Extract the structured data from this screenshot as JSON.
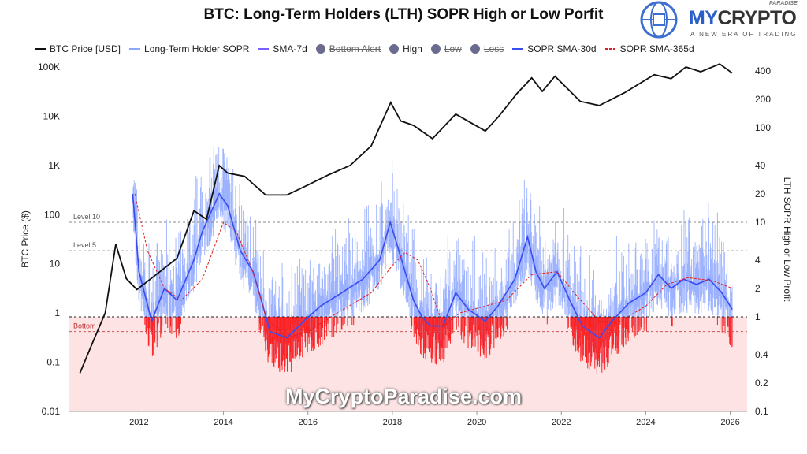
{
  "chart_data": {
    "type": "line",
    "title": "BTC: Long-Term Holders (LTH) SOPR High or Low Porfit",
    "ylabel_left": "BTC Price ($)",
    "ylabel_right": "LTH SOPR High or Low Profit",
    "y_left_scale": "log",
    "y_left_range": [
      0.01,
      100000
    ],
    "y_left_ticks": [
      "100K",
      "10K",
      "1K",
      "100",
      "10",
      "1",
      "0.1",
      "0.01"
    ],
    "y_right_scale": "log",
    "y_right_range": [
      0.1,
      400
    ],
    "y_right_ticks": [
      "400",
      "200",
      "100",
      "40",
      "20",
      "10",
      "4",
      "2",
      "1",
      "0.4",
      "0.2",
      "0.1"
    ],
    "x_range": [
      2010.35,
      2026.4
    ],
    "x_ticks": [
      "2012",
      "2014",
      "2016",
      "2018",
      "2020",
      "2022",
      "2024",
      "2026"
    ],
    "legend": [
      "BTC Price [USD]",
      "Long-Term Holder SOPR",
      "SMA-7d",
      "Bottom Alert",
      "High",
      "Low",
      "Loss",
      "SOPR SMA-30d",
      "SOPR SMA-365d"
    ],
    "legend_placement": "top",
    "reference_lines": [
      {
        "label": "Level 10",
        "value": 10
      },
      {
        "label": "Level 5",
        "value": 5
      },
      {
        "label": "",
        "value": 1
      },
      {
        "label": "Bottom",
        "value": 0.7
      }
    ],
    "colors": {
      "price": "#111111",
      "sopr": "#8fa8ff",
      "sma7": "#7b5cff",
      "sma30": "#3a4cf0",
      "sma365": "#e02020",
      "loss": "#ff2020",
      "loss_zone": "#fde3e3",
      "dot": "#6b6a8f"
    },
    "series": [
      {
        "name": "BTC Price [USD]",
        "axis": "left",
        "points": [
          [
            2010.6,
            0.06
          ],
          [
            2010.9,
            0.25
          ],
          [
            2011.2,
            1
          ],
          [
            2011.45,
            25
          ],
          [
            2011.7,
            5
          ],
          [
            2011.95,
            3
          ],
          [
            2012.5,
            7
          ],
          [
            2012.9,
            13
          ],
          [
            2013.3,
            120
          ],
          [
            2013.6,
            80
          ],
          [
            2013.9,
            1000
          ],
          [
            2014.1,
            700
          ],
          [
            2014.5,
            600
          ],
          [
            2015.0,
            250
          ],
          [
            2015.5,
            250
          ],
          [
            2016.0,
            400
          ],
          [
            2016.5,
            650
          ],
          [
            2017.0,
            1000
          ],
          [
            2017.5,
            2500
          ],
          [
            2017.96,
            19000
          ],
          [
            2018.2,
            8000
          ],
          [
            2018.5,
            6500
          ],
          [
            2018.95,
            3500
          ],
          [
            2019.5,
            11000
          ],
          [
            2020.2,
            5000
          ],
          [
            2020.5,
            9500
          ],
          [
            2020.95,
            29000
          ],
          [
            2021.3,
            60000
          ],
          [
            2021.55,
            32000
          ],
          [
            2021.85,
            65000
          ],
          [
            2022.45,
            20000
          ],
          [
            2022.9,
            16500
          ],
          [
            2023.5,
            30000
          ],
          [
            2024.2,
            70000
          ],
          [
            2024.6,
            58000
          ],
          [
            2024.95,
            100000
          ],
          [
            2025.3,
            80000
          ],
          [
            2025.75,
            115000
          ],
          [
            2026.05,
            75000
          ]
        ]
      },
      {
        "name": "SOPR SMA-30d",
        "axis": "right",
        "points": [
          [
            2011.85,
            20
          ],
          [
            2012.0,
            3
          ],
          [
            2012.3,
            0.9
          ],
          [
            2012.6,
            2
          ],
          [
            2012.9,
            1.5
          ],
          [
            2013.3,
            4
          ],
          [
            2013.5,
            8
          ],
          [
            2013.9,
            20
          ],
          [
            2014.1,
            15
          ],
          [
            2014.4,
            5
          ],
          [
            2014.7,
            3
          ],
          [
            2014.9,
            1.5
          ],
          [
            2015.1,
            0.7
          ],
          [
            2015.5,
            0.6
          ],
          [
            2015.9,
            0.9
          ],
          [
            2016.3,
            1.3
          ],
          [
            2016.8,
            1.8
          ],
          [
            2017.3,
            2.5
          ],
          [
            2017.7,
            4
          ],
          [
            2017.95,
            10
          ],
          [
            2018.1,
            6
          ],
          [
            2018.3,
            3
          ],
          [
            2018.5,
            1.5
          ],
          [
            2018.7,
            1
          ],
          [
            2018.9,
            0.8
          ],
          [
            2019.2,
            0.8
          ],
          [
            2019.5,
            1.8
          ],
          [
            2019.8,
            1.2
          ],
          [
            2020.2,
            0.9
          ],
          [
            2020.5,
            1.3
          ],
          [
            2020.9,
            2.5
          ],
          [
            2021.2,
            7
          ],
          [
            2021.4,
            3
          ],
          [
            2021.6,
            2
          ],
          [
            2021.9,
            3
          ],
          [
            2022.2,
            1.5
          ],
          [
            2022.5,
            0.8
          ],
          [
            2022.9,
            0.6
          ],
          [
            2023.2,
            0.9
          ],
          [
            2023.6,
            1.4
          ],
          [
            2024.0,
            1.8
          ],
          [
            2024.3,
            2.8
          ],
          [
            2024.6,
            2
          ],
          [
            2024.9,
            2.5
          ],
          [
            2025.2,
            2.2
          ],
          [
            2025.5,
            2.5
          ],
          [
            2025.8,
            1.8
          ],
          [
            2026.05,
            1.2
          ]
        ]
      },
      {
        "name": "SOPR SMA-365d",
        "axis": "right",
        "points": [
          [
            2011.9,
            20
          ],
          [
            2012.2,
            5
          ],
          [
            2012.6,
            2
          ],
          [
            2013.0,
            1.5
          ],
          [
            2013.5,
            2.5
          ],
          [
            2014.0,
            10
          ],
          [
            2014.3,
            8
          ],
          [
            2014.7,
            3
          ],
          [
            2015.0,
            1
          ],
          [
            2015.5,
            0.6
          ],
          [
            2016.0,
            0.7
          ],
          [
            2016.7,
            1.1
          ],
          [
            2017.5,
            1.8
          ],
          [
            2018.0,
            3.5
          ],
          [
            2018.3,
            4.8
          ],
          [
            2018.6,
            4
          ],
          [
            2018.9,
            2
          ],
          [
            2019.2,
            0.8
          ],
          [
            2019.6,
            1.1
          ],
          [
            2020.2,
            1.3
          ],
          [
            2020.7,
            1.5
          ],
          [
            2021.3,
            2.8
          ],
          [
            2021.9,
            3.0
          ],
          [
            2022.4,
            1.6
          ],
          [
            2022.9,
            0.9
          ],
          [
            2023.4,
            0.9
          ],
          [
            2024.0,
            1.3
          ],
          [
            2024.5,
            2.2
          ],
          [
            2025.0,
            2.6
          ],
          [
            2025.6,
            2.4
          ],
          [
            2026.05,
            2.0
          ]
        ]
      }
    ]
  },
  "logo": {
    "brand_my": "MY",
    "brand_crypto": "CRYPTO",
    "paradise": "PARADISE",
    "tagline": "A NEW ERA OF TRADING"
  },
  "watermark": "MyCryptoParadise.com"
}
